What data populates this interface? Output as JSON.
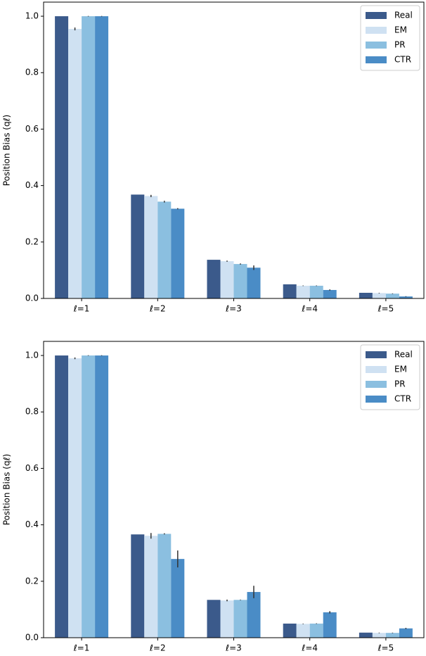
{
  "chart_data": [
    {
      "type": "bar",
      "y_label": "Position Bias (qℓ)",
      "categories": [
        "ℓ=1",
        "ℓ=2",
        "ℓ=3",
        "ℓ=4",
        "ℓ=5"
      ],
      "ylim": [
        0,
        1.05
      ],
      "yticks": [
        {
          "value": 0,
          "label": "0.0"
        },
        0.2,
        0.4,
        0.6,
        0.8,
        {
          "value": 1,
          "label": "1.0"
        }
      ],
      "legend": "upper right",
      "series": [
        {
          "name": "Real",
          "color": "#3b5a8b",
          "values": [
            1.0,
            0.368,
            0.137,
            0.05,
            0.02
          ]
        },
        {
          "name": "EM",
          "color": "#cfe1f2",
          "values": [
            0.955,
            0.363,
            0.132,
            0.045,
            0.019
          ],
          "errors": [
            0.005,
            0.004,
            0.002,
            0.001,
            0.001
          ]
        },
        {
          "name": "PR",
          "color": "#8bbfe0",
          "values": [
            1.0,
            0.343,
            0.122,
            0.045,
            0.017
          ],
          "errors": [
            0.001,
            0.003,
            0.002,
            0.001,
            0.001
          ]
        },
        {
          "name": "CTR",
          "color": "#4a8cc6",
          "values": [
            1.0,
            0.318,
            0.109,
            0.03,
            0.007
          ],
          "errors": [
            0.001,
            0.002,
            0.008,
            0.002,
            0.001
          ]
        }
      ]
    },
    {
      "type": "bar",
      "y_label": "Position Bias (qℓ)",
      "categories": [
        "ℓ=1",
        "ℓ=2",
        "ℓ=3",
        "ℓ=4",
        "ℓ=5"
      ],
      "ylim": [
        0,
        1.05
      ],
      "yticks": [
        {
          "value": 0,
          "label": "0.0"
        },
        0.2,
        0.4,
        0.6,
        0.8,
        {
          "value": 1,
          "label": "1.0"
        }
      ],
      "legend": "upper right",
      "series": [
        {
          "name": "Real",
          "color": "#3b5a8b",
          "values": [
            1.0,
            0.366,
            0.134,
            0.05,
            0.018
          ]
        },
        {
          "name": "EM",
          "color": "#cfe1f2",
          "values": [
            0.99,
            0.361,
            0.132,
            0.049,
            0.017
          ],
          "errors": [
            0.003,
            0.01,
            0.003,
            0.001,
            0.001
          ]
        },
        {
          "name": "PR",
          "color": "#8bbfe0",
          "values": [
            1.0,
            0.368,
            0.134,
            0.05,
            0.017
          ],
          "errors": [
            0.001,
            0.002,
            0.001,
            0.001,
            0.001
          ]
        },
        {
          "name": "CTR",
          "color": "#4a8cc6",
          "values": [
            1.0,
            0.279,
            0.162,
            0.09,
            0.033
          ],
          "errors": [
            0.001,
            0.03,
            0.022,
            0.004,
            0.002
          ]
        }
      ]
    }
  ]
}
